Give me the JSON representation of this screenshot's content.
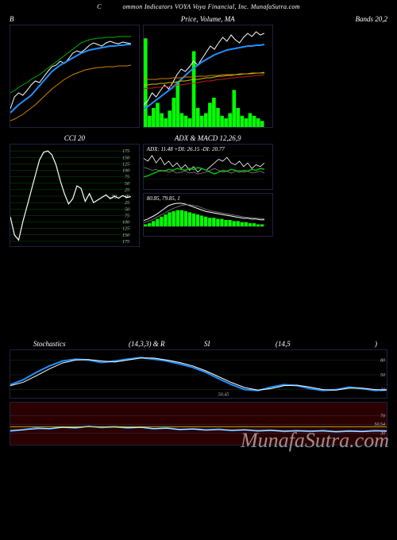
{
  "header": {
    "left_frag": "C",
    "text": "ommon Indicators VOYA Voya Financial, Inc. MunafaSutra.com"
  },
  "watermark": "MunafaSutra.com",
  "colors": {
    "bg": "#000000",
    "border": "#202040",
    "grid_green": "#005500",
    "grid_dark": "#1a1a2e",
    "white": "#ffffff",
    "blue": "#2090ff",
    "orange": "#d08000",
    "yellow": "#d0c000",
    "green_bright": "#00ff00",
    "red": "#c02020",
    "gray": "#808080"
  },
  "row1": {
    "left": {
      "title_left": "B",
      "type": "line",
      "height": 130,
      "series": [
        {
          "color": "#ffffff",
          "width": 1,
          "pts": [
            25,
            40,
            45,
            42,
            48,
            55,
            60,
            58,
            65,
            72,
            78,
            80,
            85,
            82,
            88,
            95,
            98,
            96,
            100,
            105,
            108,
            106,
            104,
            108,
            110,
            108,
            107,
            109,
            108,
            107
          ]
        },
        {
          "color": "#2090ff",
          "width": 2,
          "pts": [
            20,
            25,
            30,
            34,
            38,
            42,
            48,
            54,
            60,
            66,
            72,
            76,
            80,
            83,
            86,
            89,
            92,
            95,
            97,
            99,
            100,
            101,
            102,
            103,
            104,
            104,
            105,
            105,
            106,
            106
          ]
        },
        {
          "color": "#00b000",
          "width": 1,
          "pts": [
            45,
            48,
            52,
            55,
            58,
            62,
            65,
            68,
            72,
            76,
            80,
            84,
            88,
            92,
            96,
            100,
            104,
            108,
            110,
            112,
            113,
            114,
            114,
            115,
            115,
            115,
            116,
            116,
            116,
            116
          ]
        },
        {
          "color": "#d08000",
          "width": 1,
          "pts": [
            10,
            12,
            15,
            18,
            22,
            26,
            30,
            35,
            40,
            45,
            50,
            54,
            58,
            62,
            65,
            68,
            70,
            72,
            74,
            75,
            76,
            77,
            77,
            78,
            78,
            78,
            79,
            79,
            79,
            80
          ]
        }
      ]
    },
    "center": {
      "title": "Price, Volume, MA",
      "type": "price_volume",
      "height": 130,
      "volume_color": "#00ff00",
      "volumes": [
        35,
        5,
        8,
        10,
        6,
        4,
        7,
        12,
        18,
        6,
        5,
        4,
        30,
        8,
        5,
        6,
        10,
        12,
        8,
        5,
        4,
        6,
        15,
        8,
        5,
        4,
        6,
        5,
        4,
        3
      ],
      "series": [
        {
          "color": "#ffffff",
          "width": 1,
          "pts": [
            30,
            35,
            45,
            40,
            48,
            55,
            50,
            58,
            68,
            75,
            72,
            78,
            85,
            80,
            88,
            96,
            104,
            100,
            108,
            115,
            110,
            118,
            112,
            108,
            115,
            120,
            116,
            122,
            118,
            120
          ]
        },
        {
          "color": "#2090ff",
          "width": 2,
          "pts": [
            25,
            28,
            32,
            36,
            40,
            44,
            48,
            52,
            57,
            62,
            67,
            72,
            76,
            80,
            84,
            87,
            90,
            93,
            95,
            97,
            99,
            100,
            101,
            102,
            103,
            104,
            104,
            105,
            105,
            106
          ]
        },
        {
          "color": "#d08000",
          "width": 1,
          "pts": [
            62,
            62,
            62,
            62,
            63,
            63,
            63,
            64,
            64,
            64,
            65,
            65,
            65,
            66,
            66,
            66,
            67,
            67,
            67,
            68,
            68,
            68,
            68,
            69,
            69,
            69,
            69,
            70,
            70,
            70
          ]
        },
        {
          "color": "#d0c000",
          "width": 1,
          "pts": [
            55,
            55,
            56,
            56,
            57,
            57,
            58,
            58,
            59,
            60,
            60,
            61,
            62,
            62,
            63,
            64,
            64,
            65,
            66,
            66,
            67,
            67,
            68,
            68,
            69,
            69,
            70,
            70,
            70,
            71
          ]
        },
        {
          "color": "#c02020",
          "width": 1,
          "pts": [
            50,
            51,
            51,
            52,
            52,
            53,
            53,
            54,
            55,
            55,
            56,
            57,
            57,
            58,
            59,
            60,
            60,
            61,
            62,
            62,
            63,
            64,
            64,
            65,
            65,
            66,
            66,
            67,
            67,
            68
          ]
        }
      ]
    },
    "right": {
      "title_right": "Bands 20,2",
      "empty": true,
      "height": 130
    }
  },
  "row2": {
    "left": {
      "title": "CCI 20",
      "type": "cci",
      "height": 130,
      "grid_color": "#005500",
      "yticks": [
        175,
        150,
        125,
        100,
        75,
        50,
        25,
        0,
        -25,
        -50,
        -75,
        -100,
        -125,
        -150,
        -175
      ],
      "zero_label": "-20",
      "series": [
        {
          "color": "#ffffff",
          "width": 1.2,
          "pts": [
            -80,
            -150,
            -170,
            -100,
            -40,
            20,
            80,
            140,
            170,
            175,
            160,
            120,
            60,
            10,
            -30,
            -10,
            40,
            30,
            -20,
            10,
            -25,
            -15,
            -5,
            5,
            -10,
            0,
            -8,
            2,
            -5,
            -2
          ]
        }
      ]
    },
    "right_top": {
      "title": "ADX & MACD 12,26,9",
      "subtitle": "ADX: 11.48 +DI: 26.15 -DI: 20.77",
      "type": "adx",
      "height": 58,
      "series": [
        {
          "color": "#ffffff",
          "width": 0.8,
          "pts": [
            35,
            32,
            38,
            30,
            36,
            28,
            32,
            26,
            30,
            24,
            28,
            22,
            26,
            20,
            24,
            22,
            26,
            30,
            34,
            32,
            36,
            30,
            28,
            32,
            26,
            30,
            24,
            28,
            26,
            30
          ]
        },
        {
          "color": "#00c000",
          "width": 1.5,
          "pts": [
            15,
            16,
            18,
            20,
            22,
            21,
            23,
            22,
            24,
            23,
            22,
            24,
            23,
            25,
            24,
            22,
            20,
            18,
            20,
            22,
            21,
            23,
            22,
            20,
            22,
            21,
            23,
            22,
            24,
            23
          ]
        },
        {
          "color": "#808080",
          "width": 0.8,
          "pts": [
            25,
            24,
            22,
            23,
            21,
            22,
            20,
            21,
            19,
            20,
            21,
            19,
            20,
            18,
            19,
            20,
            22,
            24,
            22,
            20,
            21,
            19,
            21,
            22,
            20,
            21,
            19,
            20,
            21,
            19
          ]
        }
      ]
    },
    "right_bottom": {
      "subtitle": "80.85, 79.85, 1",
      "type": "macd",
      "height": 55,
      "hist_color": "#00ff00",
      "hist": [
        2,
        3,
        5,
        7,
        9,
        11,
        13,
        14,
        15,
        15,
        14,
        13,
        12,
        11,
        10,
        9,
        8,
        8,
        7,
        7,
        6,
        6,
        5,
        5,
        4,
        4,
        3,
        3,
        2,
        2
      ],
      "series": [
        {
          "color": "#ffffff",
          "width": 1,
          "pts": [
            8,
            10,
            13,
            16,
            20,
            24,
            28,
            30,
            31,
            31,
            30,
            28,
            26,
            24,
            22,
            20,
            19,
            18,
            17,
            16,
            15,
            14,
            13,
            12,
            11,
            11,
            10,
            10,
            9,
            9
          ]
        },
        {
          "color": "#808080",
          "width": 0.8,
          "pts": [
            5,
            7,
            9,
            12,
            15,
            18,
            21,
            24,
            26,
            28,
            29,
            29,
            28,
            27,
            25,
            23,
            21,
            20,
            19,
            18,
            17,
            16,
            15,
            14,
            13,
            12,
            12,
            11,
            11,
            10
          ]
        }
      ]
    }
  },
  "row3": {
    "title_left": "Stochastics",
    "title_params1": "(14,3,3) & R",
    "title_mid": "SI",
    "title_params2": "(14,5",
    "title_close": ")",
    "top": {
      "type": "stoch",
      "height": 62,
      "yticks": [
        80,
        50,
        20
      ],
      "marker": "50.45",
      "grid_color": "#1a3a1a",
      "series": [
        {
          "color": "#2090ff",
          "width": 2,
          "pts": [
            30,
            40,
            55,
            68,
            78,
            82,
            80,
            75,
            78,
            82,
            85,
            82,
            78,
            72,
            65,
            55,
            42,
            30,
            20,
            18,
            25,
            30,
            28,
            22,
            18,
            20,
            25,
            22,
            18,
            20
          ]
        },
        {
          "color": "#ffffff",
          "width": 1,
          "pts": [
            28,
            35,
            48,
            62,
            74,
            80,
            81,
            78,
            76,
            80,
            84,
            84,
            80,
            75,
            68,
            58,
            46,
            34,
            24,
            19,
            22,
            28,
            29,
            25,
            20,
            19,
            23,
            23,
            20,
            19
          ]
        }
      ]
    },
    "bottom": {
      "type": "rsi",
      "height": 55,
      "bg": "#2a0000",
      "yticks": [
        70,
        "50.54",
        30
      ],
      "grid_color": "#303050",
      "series": [
        {
          "color": "#2090ff",
          "width": 2,
          "pts": [
            35,
            38,
            42,
            40,
            44,
            42,
            46,
            43,
            45,
            42,
            44,
            40,
            42,
            38,
            40,
            37,
            39,
            36,
            38,
            35,
            37,
            34,
            36,
            34,
            36,
            33,
            35,
            34,
            36,
            35
          ]
        },
        {
          "color": "#ffffff",
          "width": 0.8,
          "pts": [
            36,
            38,
            40,
            41,
            43,
            43,
            45,
            44,
            44,
            43,
            43,
            41,
            41,
            39,
            39,
            38,
            38,
            37,
            37,
            36,
            36,
            35,
            35,
            35,
            35,
            34,
            35,
            34,
            35,
            35
          ]
        },
        {
          "color": "#d0c000",
          "width": 0.8,
          "pts": [
            45,
            45,
            45,
            45,
            45,
            45,
            45,
            45,
            45,
            45,
            45,
            45,
            45,
            45,
            45,
            45,
            45,
            45,
            45,
            45,
            45,
            45,
            45,
            45,
            45,
            45,
            45,
            45,
            45,
            45
          ]
        }
      ]
    }
  }
}
